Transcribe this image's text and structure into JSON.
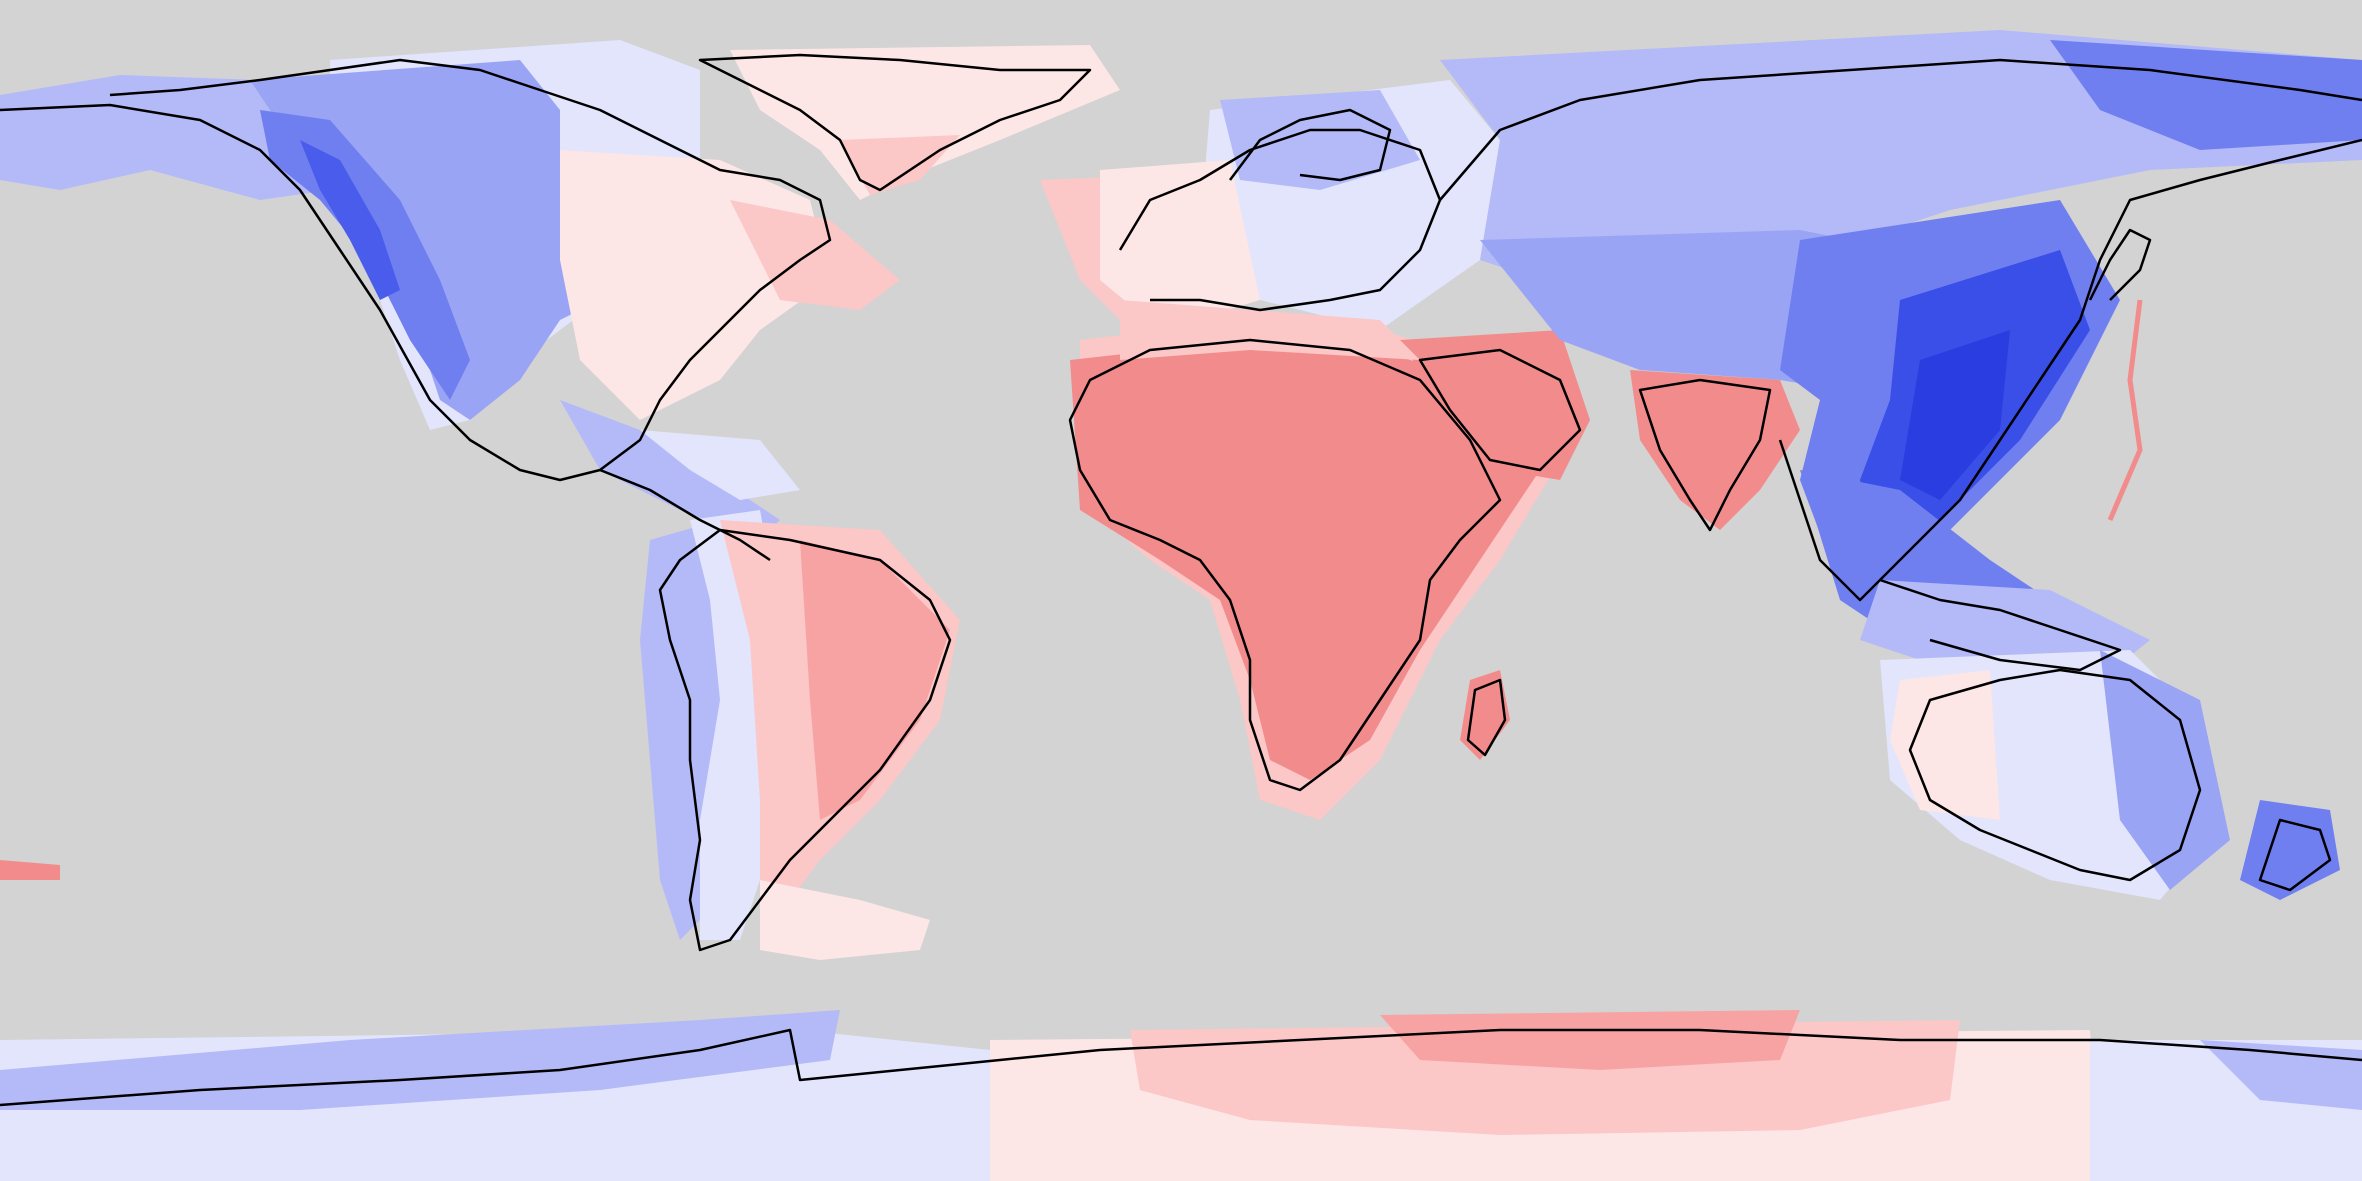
{
  "map": {
    "projection": "equirectangular",
    "background_color": "#d3d3d3",
    "coastline_color": "#000000",
    "color_scale": {
      "blue_strong": "#3a4ee8",
      "blue_mid": "#6f7ff0",
      "blue_light": "#b3baf7",
      "blue_pale": "#e2e5fc",
      "red_pale": "#fde6e6",
      "red_light": "#fbc7c7",
      "red_mid": "#f8a3a3",
      "red_strong": "#f28c8c"
    },
    "regions": [
      {
        "name": "north-america-west",
        "tone": "blue_mid"
      },
      {
        "name": "north-america-east",
        "tone": "red_pale"
      },
      {
        "name": "greenland",
        "tone": "red_pale"
      },
      {
        "name": "south-america",
        "tone": "red_light"
      },
      {
        "name": "africa",
        "tone": "red_strong"
      },
      {
        "name": "arabia-india",
        "tone": "red_strong"
      },
      {
        "name": "europe",
        "tone": "blue_pale"
      },
      {
        "name": "east-asia",
        "tone": "blue_strong"
      },
      {
        "name": "australia",
        "tone": "blue_light"
      },
      {
        "name": "antarctica-west",
        "tone": "blue_light"
      },
      {
        "name": "antarctica-east",
        "tone": "red_light"
      }
    ]
  }
}
